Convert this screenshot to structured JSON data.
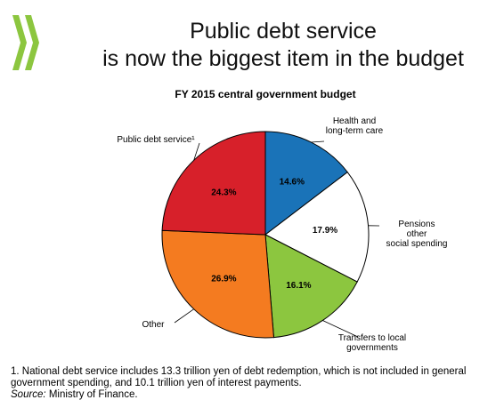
{
  "header": {
    "title_line1": "Public debt service",
    "title_line2": "is now the biggest item in the budget"
  },
  "chart_data": {
    "type": "pie",
    "title": "FY 2015 central government budget",
    "slices": [
      {
        "label": "Health and long-term care",
        "label_lines": [
          "Health and",
          "long-term care"
        ],
        "value": 14.6,
        "value_label": "14.6%",
        "color": "#1a73b8"
      },
      {
        "label": "Pensions other social spending",
        "label_lines": [
          "Pensions",
          "other",
          "social spending"
        ],
        "value": 17.9,
        "value_label": "17.9%",
        "color": "#ffffff"
      },
      {
        "label": "Transfers to local governments",
        "label_lines": [
          "Transfers to local",
          "governments"
        ],
        "value": 16.1,
        "value_label": "16.1%",
        "color": "#8cc63f"
      },
      {
        "label": "Other",
        "label_lines": [
          "Other"
        ],
        "value": 26.9,
        "value_label": "26.9%",
        "color": "#f47b20"
      },
      {
        "label": "Public debt service¹",
        "label_lines": [
          "Public debt service¹"
        ],
        "value": 24.3,
        "value_label": "24.3%",
        "color": "#d7202a"
      }
    ]
  },
  "notes": {
    "footnote": "1.  National debt service includes 13.3 trillion yen of debt redemption, which is not included in general government spending, and 10.1 trillion yen of interest payments.",
    "source_label": "Source:",
    "source_text": " Ministry of Finance."
  },
  "colors": {
    "logo": "#8cc63f",
    "outline": "#000000"
  }
}
